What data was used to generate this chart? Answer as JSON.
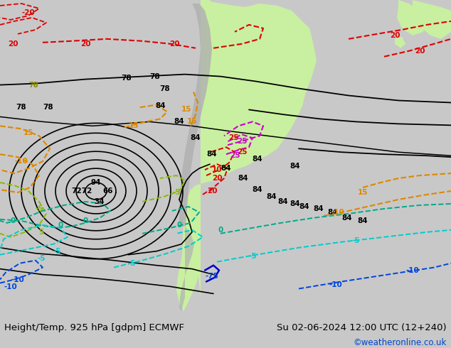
{
  "title_left": "Height/Temp. 925 hPa [gdpm] ECMWF",
  "title_right": "Su 02-06-2024 12:00 UTC (12+240)",
  "watermark": "©weatheronline.co.uk",
  "bg_color": "#c8c8c8",
  "ocean_color": "#e8e8e8",
  "land_color": "#c8f0a0",
  "mountain_color": "#b0b0b0",
  "text_color": "#000000",
  "watermark_color": "#0044cc",
  "bottom_bar_color": "#d8d8d8",
  "title_fontsize": 9.5,
  "watermark_fontsize": 8.5,
  "fig_width": 6.34,
  "fig_height": 4.9,
  "dpi": 100
}
